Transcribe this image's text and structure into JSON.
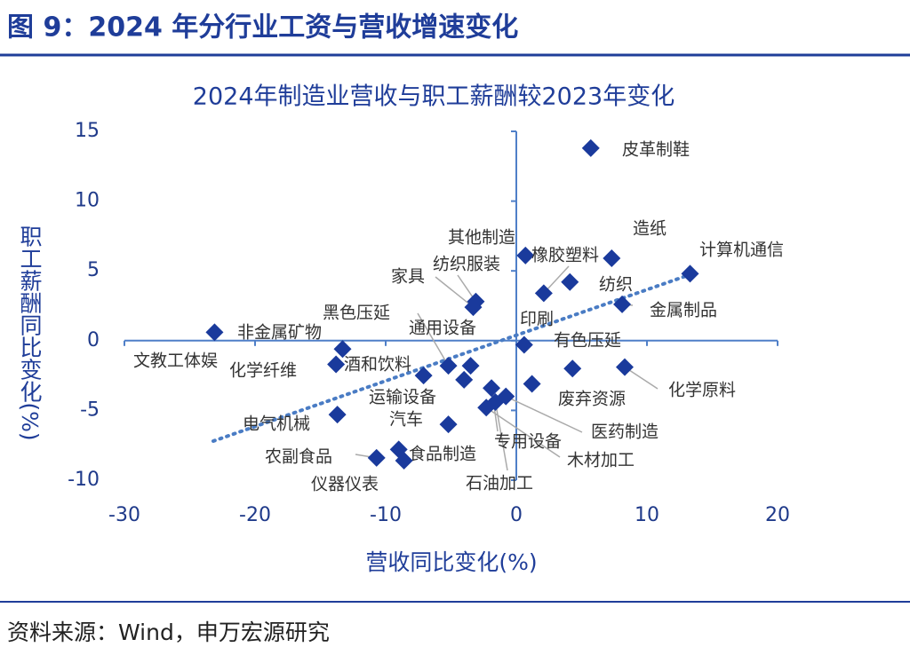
{
  "header": "图 9：2024 年分行业工资与营收增速变化",
  "chart_data": {
    "type": "scatter",
    "title": "2024年制造业营收与职工薪酬较2023年变化",
    "x_label": "营收同比变化(%)",
    "y_label": "职工薪酬同比变化(%)",
    "xlim": [
      -30,
      20
    ],
    "xticks": [
      -30,
      -20,
      -10,
      0,
      10,
      20
    ],
    "ylim": [
      -10,
      15
    ],
    "yticks": [
      -10,
      -5,
      0,
      5,
      10,
      15
    ],
    "color": "#1a3a9c",
    "trend_color": "#4a7cc4",
    "trend_x": [
      -23.2,
      13.2
    ],
    "trend_y": [
      -7.2,
      4.7
    ],
    "labels": [
      "皮革制鞋",
      "计算机通信",
      "造纸",
      "其他制造",
      "橡胶塑料",
      "纺织",
      "金属制品",
      "纺织服装",
      "家具",
      "印刷",
      "有色压延",
      "化学原料",
      "废弃资源",
      "非金属矿物",
      "文教工体娱",
      "化学纤维",
      "酒和饮料",
      "黑色压延",
      "通用设备",
      "运输设备",
      "电气机械",
      "汽车",
      "专用设备",
      "医药制造",
      "木材加工",
      "石油加工",
      "农副食品",
      "食品制造",
      "仪器仪表"
    ],
    "x": [
      5.7,
      13.3,
      7.3,
      0.7,
      2.1,
      4.1,
      8.1,
      -3.1,
      -3.3,
      0.6,
      4.3,
      8.3,
      1.2,
      -23.1,
      -13.3,
      -13.8,
      -7.1,
      -5.2,
      -3.5,
      -4.0,
      -13.7,
      -5.2,
      -1.9,
      -0.8,
      -2.3,
      -1.6,
      -10.7,
      -9.0,
      -8.6
    ],
    "y": [
      13.8,
      4.8,
      5.9,
      6.1,
      3.4,
      4.2,
      2.6,
      2.8,
      2.4,
      -0.3,
      -2.0,
      -1.9,
      -3.1,
      0.6,
      -0.6,
      -1.7,
      -2.5,
      -1.8,
      -1.8,
      -2.8,
      -5.3,
      -6.0,
      -3.4,
      -4.0,
      -4.8,
      -4.4,
      -8.4,
      -7.8,
      -8.6
    ]
  },
  "source": "资料来源：Wind，申万宏源研究"
}
